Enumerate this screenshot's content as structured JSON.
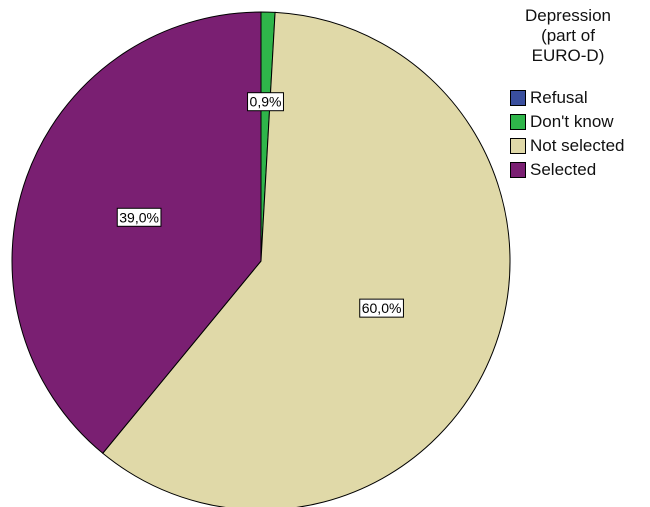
{
  "chart_data": {
    "type": "pie",
    "title": "",
    "legend_title_lines": [
      "Depression",
      "(part of",
      "EURO-D)"
    ],
    "legend_position": "top-right",
    "start_angle_deg": 0,
    "direction": "clockwise",
    "slices": [
      {
        "label": "Refusal",
        "value": 0.0,
        "data_label": "",
        "color": "#3a4f9e"
      },
      {
        "label": "Don't know",
        "value": 0.9,
        "data_label": "0,9%",
        "color": "#2fb54a"
      },
      {
        "label": "Not selected",
        "value": 60.0,
        "data_label": "60,0%",
        "color": "#e0d9a8"
      },
      {
        "label": "Selected",
        "value": 39.0,
        "data_label": "39,0%",
        "color": "#7a1f72"
      }
    ]
  }
}
